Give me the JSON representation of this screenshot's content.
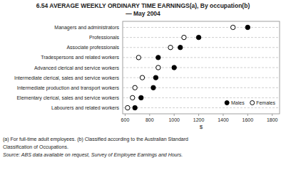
{
  "chart_data": {
    "type": "dot",
    "orientation": "horizontal",
    "title": "6.54   AVERAGE WEEKLY ORDINARY TIME EARNINGS(a), By occupation(b)",
    "subtitle": "— May 2004",
    "categories": [
      "Managers and administrators",
      "Professionals",
      "Associate professionals",
      "Tradespersons and related workers",
      "Advanced clerical and service workers",
      "Intermediate clerical, sales and service workers",
      "Intermediate production and transport workers",
      "Elementary clerical, sales and service workers",
      "Labourers and related workers"
    ],
    "series": [
      {
        "name": "Males",
        "color": "#000000",
        "marker": "circle",
        "values": [
          1600,
          1200,
          1050,
          870,
          1000,
          850,
          830,
          730,
          680
        ]
      },
      {
        "name": "Females",
        "color": "#000000",
        "marker": "open-circle",
        "values": [
          1480,
          1080,
          970,
          710,
          870,
          740,
          680,
          660,
          620
        ]
      }
    ],
    "xlabel": "$",
    "xlim": [
      580,
      1860
    ],
    "xticks": [
      600,
      800,
      1000,
      1200,
      1400,
      1600,
      1800
    ],
    "grid": true,
    "legend": "lower right",
    "annotations": [
      "(a) For full-time adult employees.  (b) Classified according to the Australian Standard",
      "Classification of Occupations.",
      "Source: ABS data available on request, Survey of Employee Earnings and Hours."
    ]
  }
}
